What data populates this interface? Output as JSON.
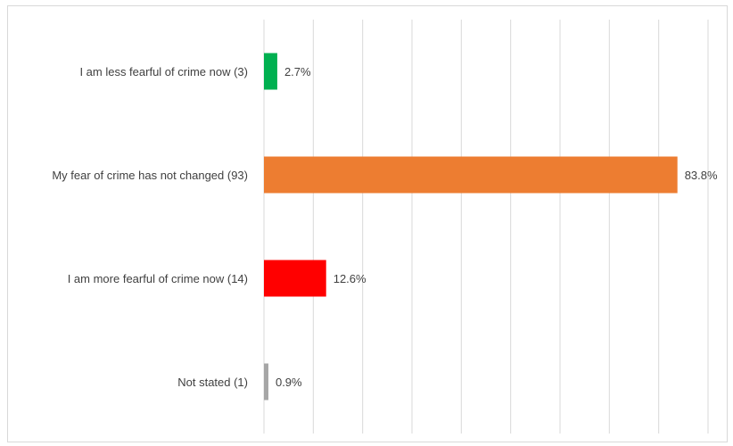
{
  "chart_data": {
    "type": "bar",
    "orientation": "horizontal",
    "title": "",
    "xlabel": "",
    "ylabel": "",
    "xlim": [
      0,
      90
    ],
    "grid": true,
    "legend": "none",
    "categories": [
      "I am less fearful of crime now (3)",
      "My fear of crime has not changed (93)",
      "I am more fearful of crime now (14)",
      "Not stated (1)"
    ],
    "values": [
      2.7,
      83.8,
      12.6,
      0.9
    ],
    "data_labels": [
      "2.7%",
      "83.8%",
      "12.6%",
      "0.9%"
    ],
    "colors": [
      "#00b050",
      "#ed7d31",
      "#ff0000",
      "#a6a6a6"
    ]
  }
}
